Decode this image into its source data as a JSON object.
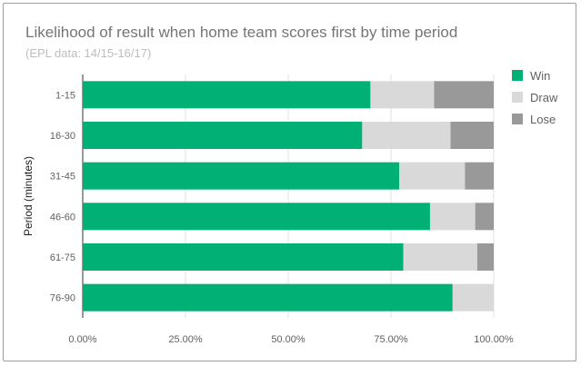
{
  "chart_data": {
    "type": "bar",
    "orientation": "horizontal",
    "stacked": true,
    "title": "Likelihood of result when home team scores first by time period",
    "subtitle": "(EPL data: 14/15-16/17)",
    "ylabel": "Period (minutes)",
    "xlabel": "",
    "xlim": [
      0,
      1
    ],
    "xticks": [
      "0.00%",
      "25.00%",
      "50.00%",
      "75.00%",
      "100.00%"
    ],
    "categories": [
      "1-15",
      "16-30",
      "31-45",
      "46-60",
      "61-75",
      "76-90"
    ],
    "series": [
      {
        "name": "Win",
        "color": "#00b074",
        "values": [
          0.7,
          0.68,
          0.77,
          0.845,
          0.78,
          0.9
        ]
      },
      {
        "name": "Draw",
        "color": "#d9d9d9",
        "values": [
          0.155,
          0.215,
          0.16,
          0.11,
          0.18,
          0.1
        ]
      },
      {
        "name": "Lose",
        "color": "#999999",
        "values": [
          0.145,
          0.105,
          0.07,
          0.045,
          0.04,
          0.0
        ]
      }
    ],
    "grid": true,
    "legend": "right"
  }
}
